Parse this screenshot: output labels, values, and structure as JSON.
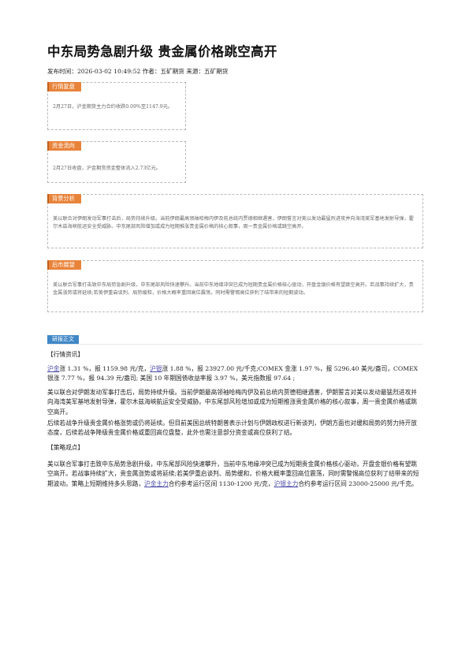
{
  "title": "中东局势急剧升级 贵金属价格跳空高开",
  "meta": "发布时间：2026-03-02 10:49:52 作者：五矿期货 来源：五矿期货",
  "boxes": {
    "review": {
      "tag": "行情复盘",
      "text": "2月27日，沪金期货主力合约收跌0.09%至1147.9元。"
    },
    "flow": {
      "tag": "资金流向",
      "text": "2月27日收盘，沪金期货资金整体流入2.73亿元。"
    },
    "background": {
      "tag": "背景分析",
      "text": "美以联合对伊朗发动军事打击后，局势持续升级。当前伊朗最高领袖哈梅内伊及前总统内贾德相继遇害，伊朗誓言对美以发动最猛烈进攻并向海湾美军基地发射导弹，霍尔木兹海峡航运安全受威胁。中东尾部风险增加或成为短期推涨贵金属价格的核心叙事，周一贵金属价格或跳空高开。"
    },
    "outlook": {
      "tag": "后市展望",
      "text": "美以联合军事打击致中东局势急剧升级，中东尾部风险快速攀升。当前中东地缘冲突已成为短期贵金属价格核心驱动，开盘金银价格有望跳空高开。若战事持续扩大，贵金属涨势或将延续;若美伊重启谈判、局势缓和，价格大概率重回高位震荡，同时需警惕高位获利了结带来的短期波动。"
    }
  },
  "research_tag": "研报正文",
  "sections": {
    "market_header": "【行情资讯】",
    "market_link_gold": "沪金",
    "market_p1_a": "涨 1.31 %，报 1159.98 元/克，",
    "market_link_silver": "沪银",
    "market_p1_b": "涨 1.88 %，报 23927.00 元/千克;COMEX 金涨 1.97 %，报 5296.40 美元/盎司，COMEX 银涨 7.77 %，报 94.39 元/盎司; 美国 10 年期国债收益率报 3.97 %，美元指数报 97.64 ;",
    "market_p2": "美以联合对伊朗发动军事打击后，局势持续升级。当前伊朗最高领袖哈梅内伊及前总统内贾德相继遇害，伊朗誓言对美以发动最猛烈进攻并向海湾美军基地发射导弹，霍尔木兹海峡航运安全受威胁。中东尾部风险增加或成为短期推涨贵金属价格的核心叙事，周一贵金属价格或跳空高开。",
    "market_p3": "后续若战争升级贵金属价格涨势或仍将延续。但目前美国总统特朗普表示计划与伊朗政权进行新谈判，伊朗方面也对缓和局势的努力持开放态度，后续若战争降级贵金属价格或重回高位盘整，此外也需注意部分资金或高位获利了结。",
    "strategy_header": "【策略观点】",
    "strategy_p1_a": "美以联合军事打击致中东局势急剧升级，中东尾部风险快速攀升，当前中东地缘冲突已成为短期贵金属价格核心驱动，开盘金银价格有望跳空高开。若战事持续扩大，贵金属涨势或将延续;若美伊重启谈判、局势缓和，价格大概率重回高位震荡，同时需警惕高位获利了结带来的短期波动。策略上短期维持多头思路，",
    "strategy_link_gold": "沪金主力",
    "strategy_p1_b": "合约参考运行区间 1130-1200 元/克，",
    "strategy_link_silver": "沪银主力",
    "strategy_p1_c": "合约参考运行区间 23000-25000 元/千克。"
  }
}
